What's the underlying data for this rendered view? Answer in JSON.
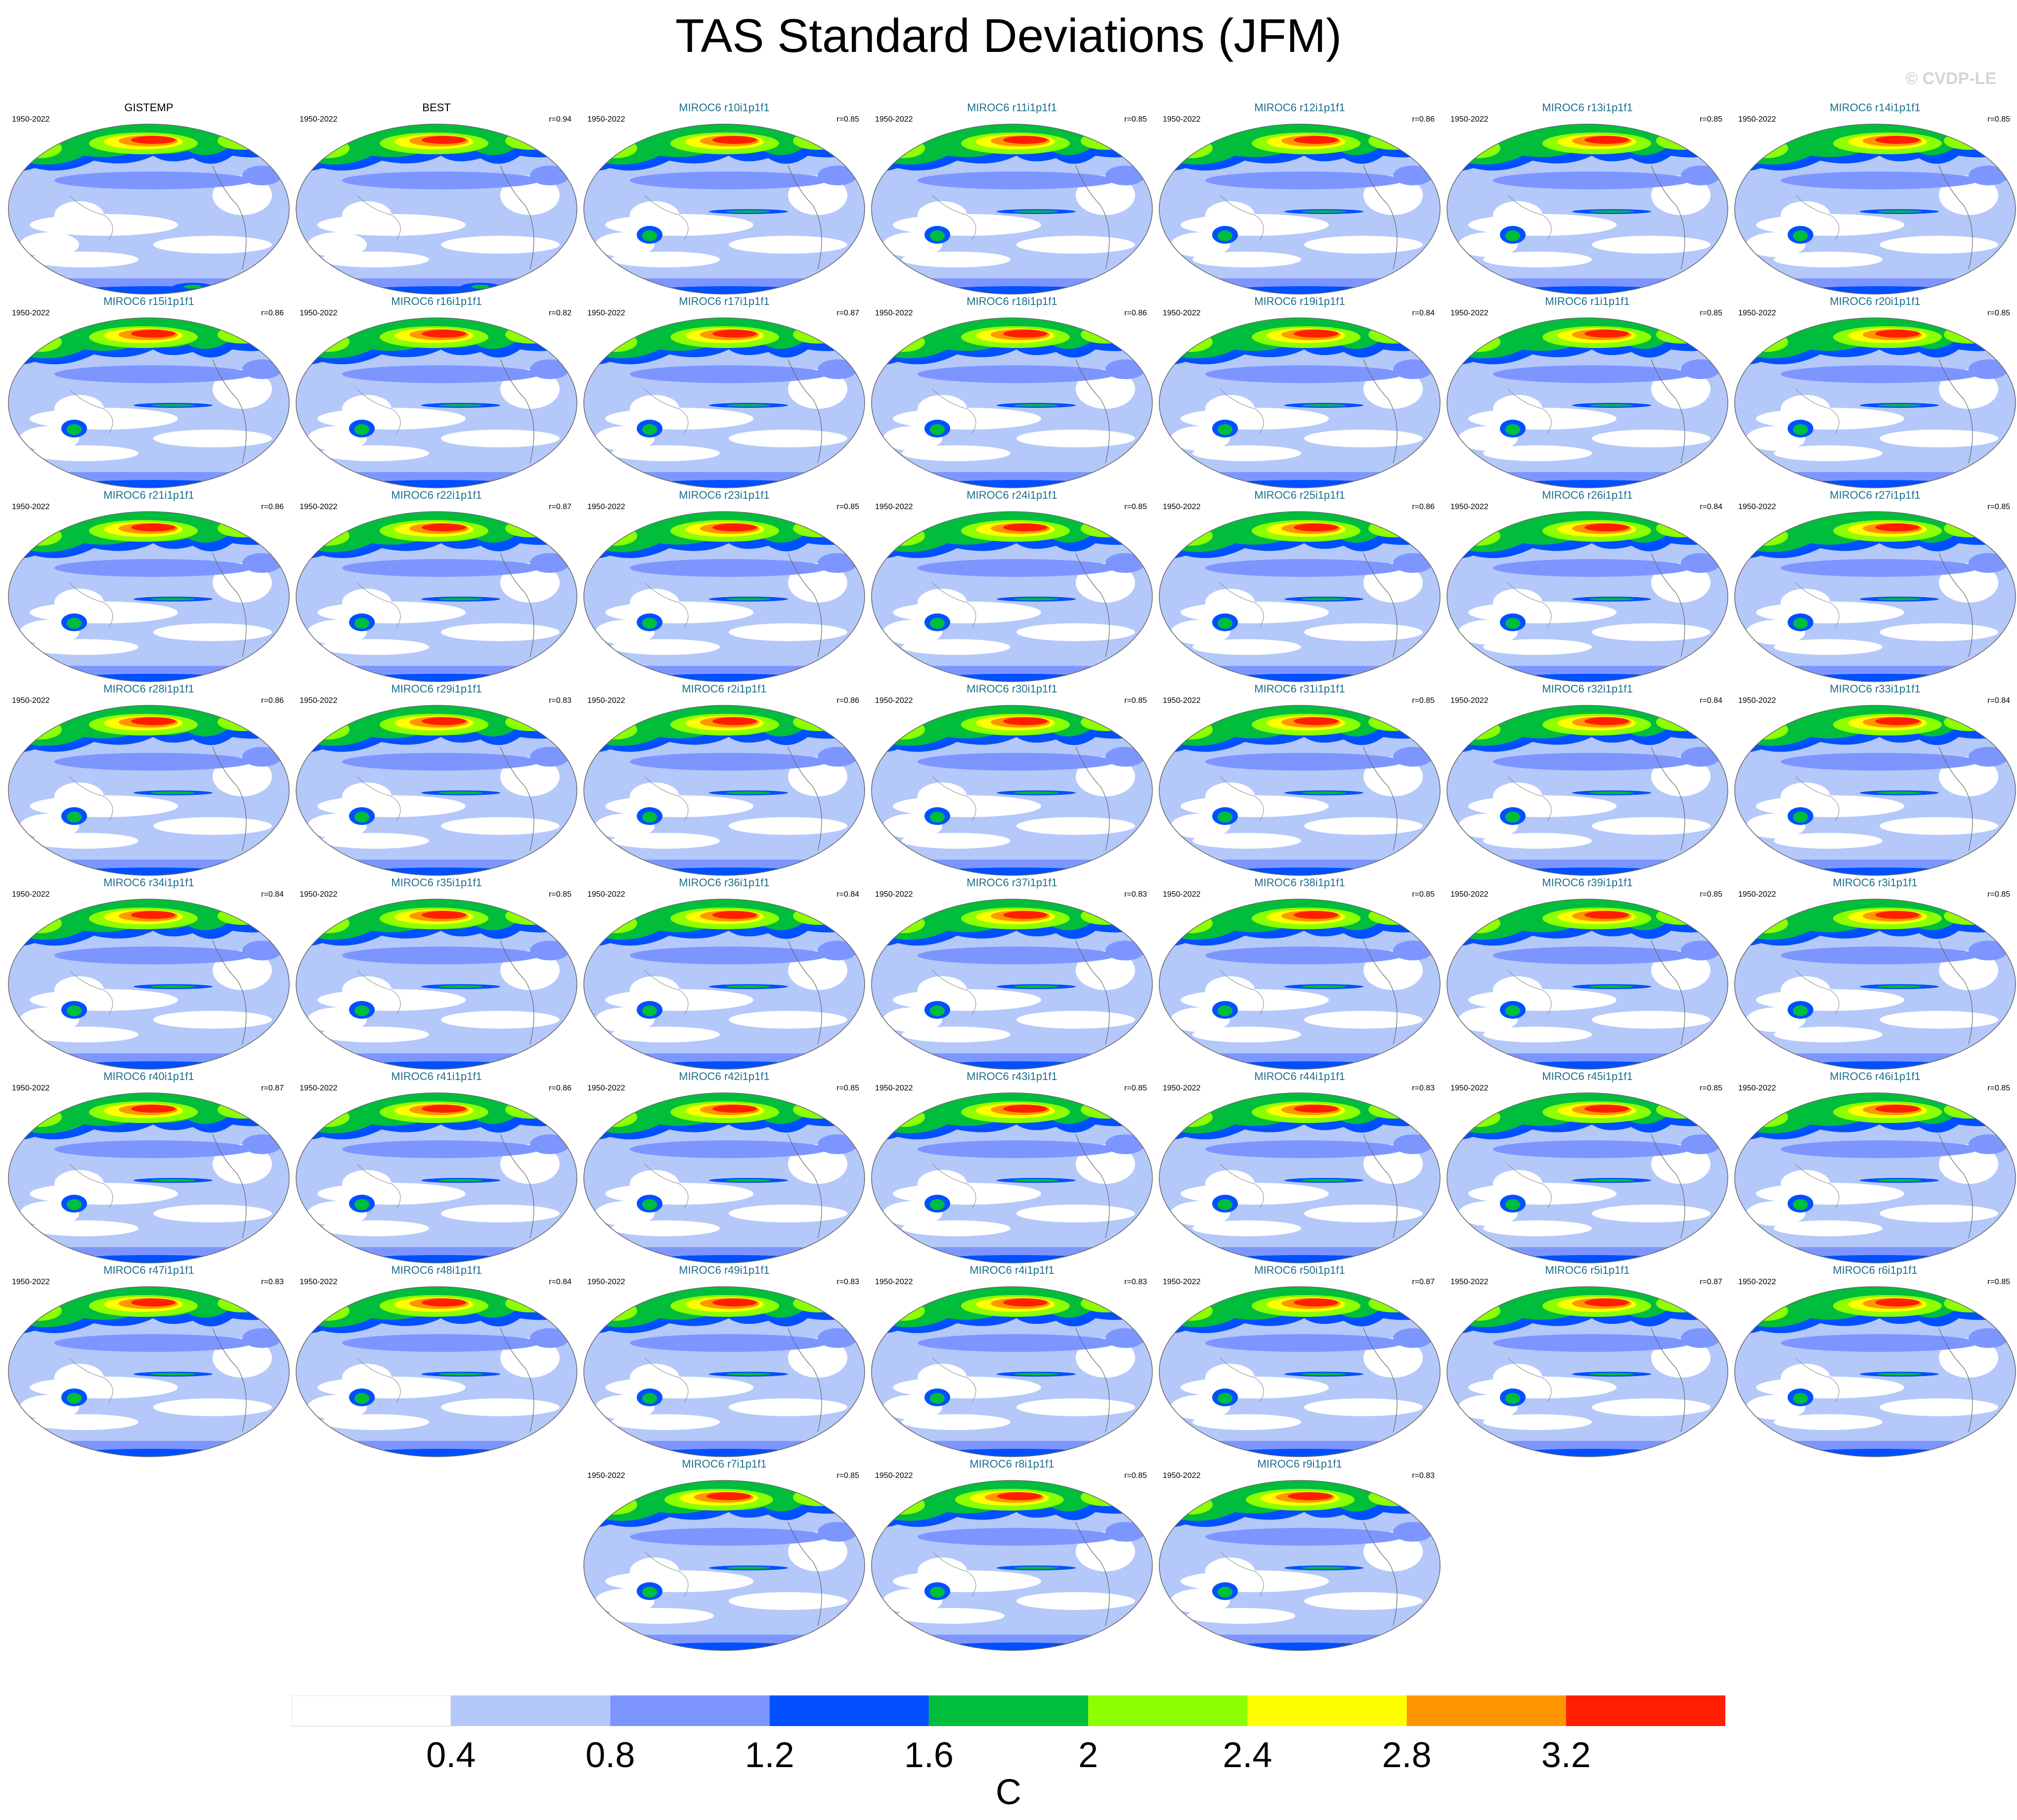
{
  "title": "TAS Standard Deviations (JFM)",
  "watermark": "© CVDP-LE",
  "period": "1950-2022",
  "panels": [
    {
      "title": "GISTEMP",
      "r": "",
      "obs": true
    },
    {
      "title": "BEST",
      "r": "r=0.94",
      "obs": true
    },
    {
      "title": "MIROC6 r10i1p1f1",
      "r": "r=0.85"
    },
    {
      "title": "MIROC6 r11i1p1f1",
      "r": "r=0.85"
    },
    {
      "title": "MIROC6 r12i1p1f1",
      "r": "r=0.86"
    },
    {
      "title": "MIROC6 r13i1p1f1",
      "r": "r=0.85"
    },
    {
      "title": "MIROC6 r14i1p1f1",
      "r": "r=0.85"
    },
    {
      "title": "MIROC6 r15i1p1f1",
      "r": "r=0.86"
    },
    {
      "title": "MIROC6 r16i1p1f1",
      "r": "r=0.82"
    },
    {
      "title": "MIROC6 r17i1p1f1",
      "r": "r=0.87"
    },
    {
      "title": "MIROC6 r18i1p1f1",
      "r": "r=0.86"
    },
    {
      "title": "MIROC6 r19i1p1f1",
      "r": "r=0.84"
    },
    {
      "title": "MIROC6 r1i1p1f1",
      "r": "r=0.85"
    },
    {
      "title": "MIROC6 r20i1p1f1",
      "r": "r=0.85"
    },
    {
      "title": "MIROC6 r21i1p1f1",
      "r": "r=0.86"
    },
    {
      "title": "MIROC6 r22i1p1f1",
      "r": "r=0.87"
    },
    {
      "title": "MIROC6 r23i1p1f1",
      "r": "r=0.85"
    },
    {
      "title": "MIROC6 r24i1p1f1",
      "r": "r=0.85"
    },
    {
      "title": "MIROC6 r25i1p1f1",
      "r": "r=0.86"
    },
    {
      "title": "MIROC6 r26i1p1f1",
      "r": "r=0.84"
    },
    {
      "title": "MIROC6 r27i1p1f1",
      "r": "r=0.85"
    },
    {
      "title": "MIROC6 r28i1p1f1",
      "r": "r=0.86"
    },
    {
      "title": "MIROC6 r29i1p1f1",
      "r": "r=0.83"
    },
    {
      "title": "MIROC6 r2i1p1f1",
      "r": "r=0.86"
    },
    {
      "title": "MIROC6 r30i1p1f1",
      "r": "r=0.85"
    },
    {
      "title": "MIROC6 r31i1p1f1",
      "r": "r=0.85"
    },
    {
      "title": "MIROC6 r32i1p1f1",
      "r": "r=0.84"
    },
    {
      "title": "MIROC6 r33i1p1f1",
      "r": "r=0.84"
    },
    {
      "title": "MIROC6 r34i1p1f1",
      "r": "r=0.84"
    },
    {
      "title": "MIROC6 r35i1p1f1",
      "r": "r=0.85"
    },
    {
      "title": "MIROC6 r36i1p1f1",
      "r": "r=0.84"
    },
    {
      "title": "MIROC6 r37i1p1f1",
      "r": "r=0.83"
    },
    {
      "title": "MIROC6 r38i1p1f1",
      "r": "r=0.85"
    },
    {
      "title": "MIROC6 r39i1p1f1",
      "r": "r=0.85"
    },
    {
      "title": "MIROC6 r3i1p1f1",
      "r": "r=0.85"
    },
    {
      "title": "MIROC6 r40i1p1f1",
      "r": "r=0.87"
    },
    {
      "title": "MIROC6 r41i1p1f1",
      "r": "r=0.86"
    },
    {
      "title": "MIROC6 r42i1p1f1",
      "r": "r=0.85"
    },
    {
      "title": "MIROC6 r43i1p1f1",
      "r": "r=0.85"
    },
    {
      "title": "MIROC6 r44i1p1f1",
      "r": "r=0.83"
    },
    {
      "title": "MIROC6 r45i1p1f1",
      "r": "r=0.85"
    },
    {
      "title": "MIROC6 r46i1p1f1",
      "r": "r=0.85"
    },
    {
      "title": "MIROC6 r47i1p1f1",
      "r": "r=0.83"
    },
    {
      "title": "MIROC6 r48i1p1f1",
      "r": "r=0.84"
    },
    {
      "title": "MIROC6 r49i1p1f1",
      "r": "r=0.83"
    },
    {
      "title": "MIROC6 r4i1p1f1",
      "r": "r=0.83"
    },
    {
      "title": "MIROC6 r50i1p1f1",
      "r": "r=0.87"
    },
    {
      "title": "MIROC6 r5i1p1f1",
      "r": "r=0.87"
    },
    {
      "title": "MIROC6 r6i1p1f1",
      "r": "r=0.85"
    },
    {
      "title": "MIROC6 r7i1p1f1",
      "r": "r=0.85"
    },
    {
      "title": "MIROC6 r8i1p1f1",
      "r": "r=0.85"
    },
    {
      "title": "MIROC6 r9i1p1f1",
      "r": "r=0.83"
    }
  ],
  "colorbar": {
    "colors": [
      "#ffffff",
      "#b4c8fa",
      "#7d96ff",
      "#0050ff",
      "#00be3c",
      "#8cff00",
      "#ffff00",
      "#ff9600",
      "#ff1e00"
    ],
    "labels": [
      "0.4",
      "0.8",
      "1.2",
      "1.6",
      "2",
      "2.4",
      "2.8",
      "3.2"
    ],
    "units": "C"
  }
}
